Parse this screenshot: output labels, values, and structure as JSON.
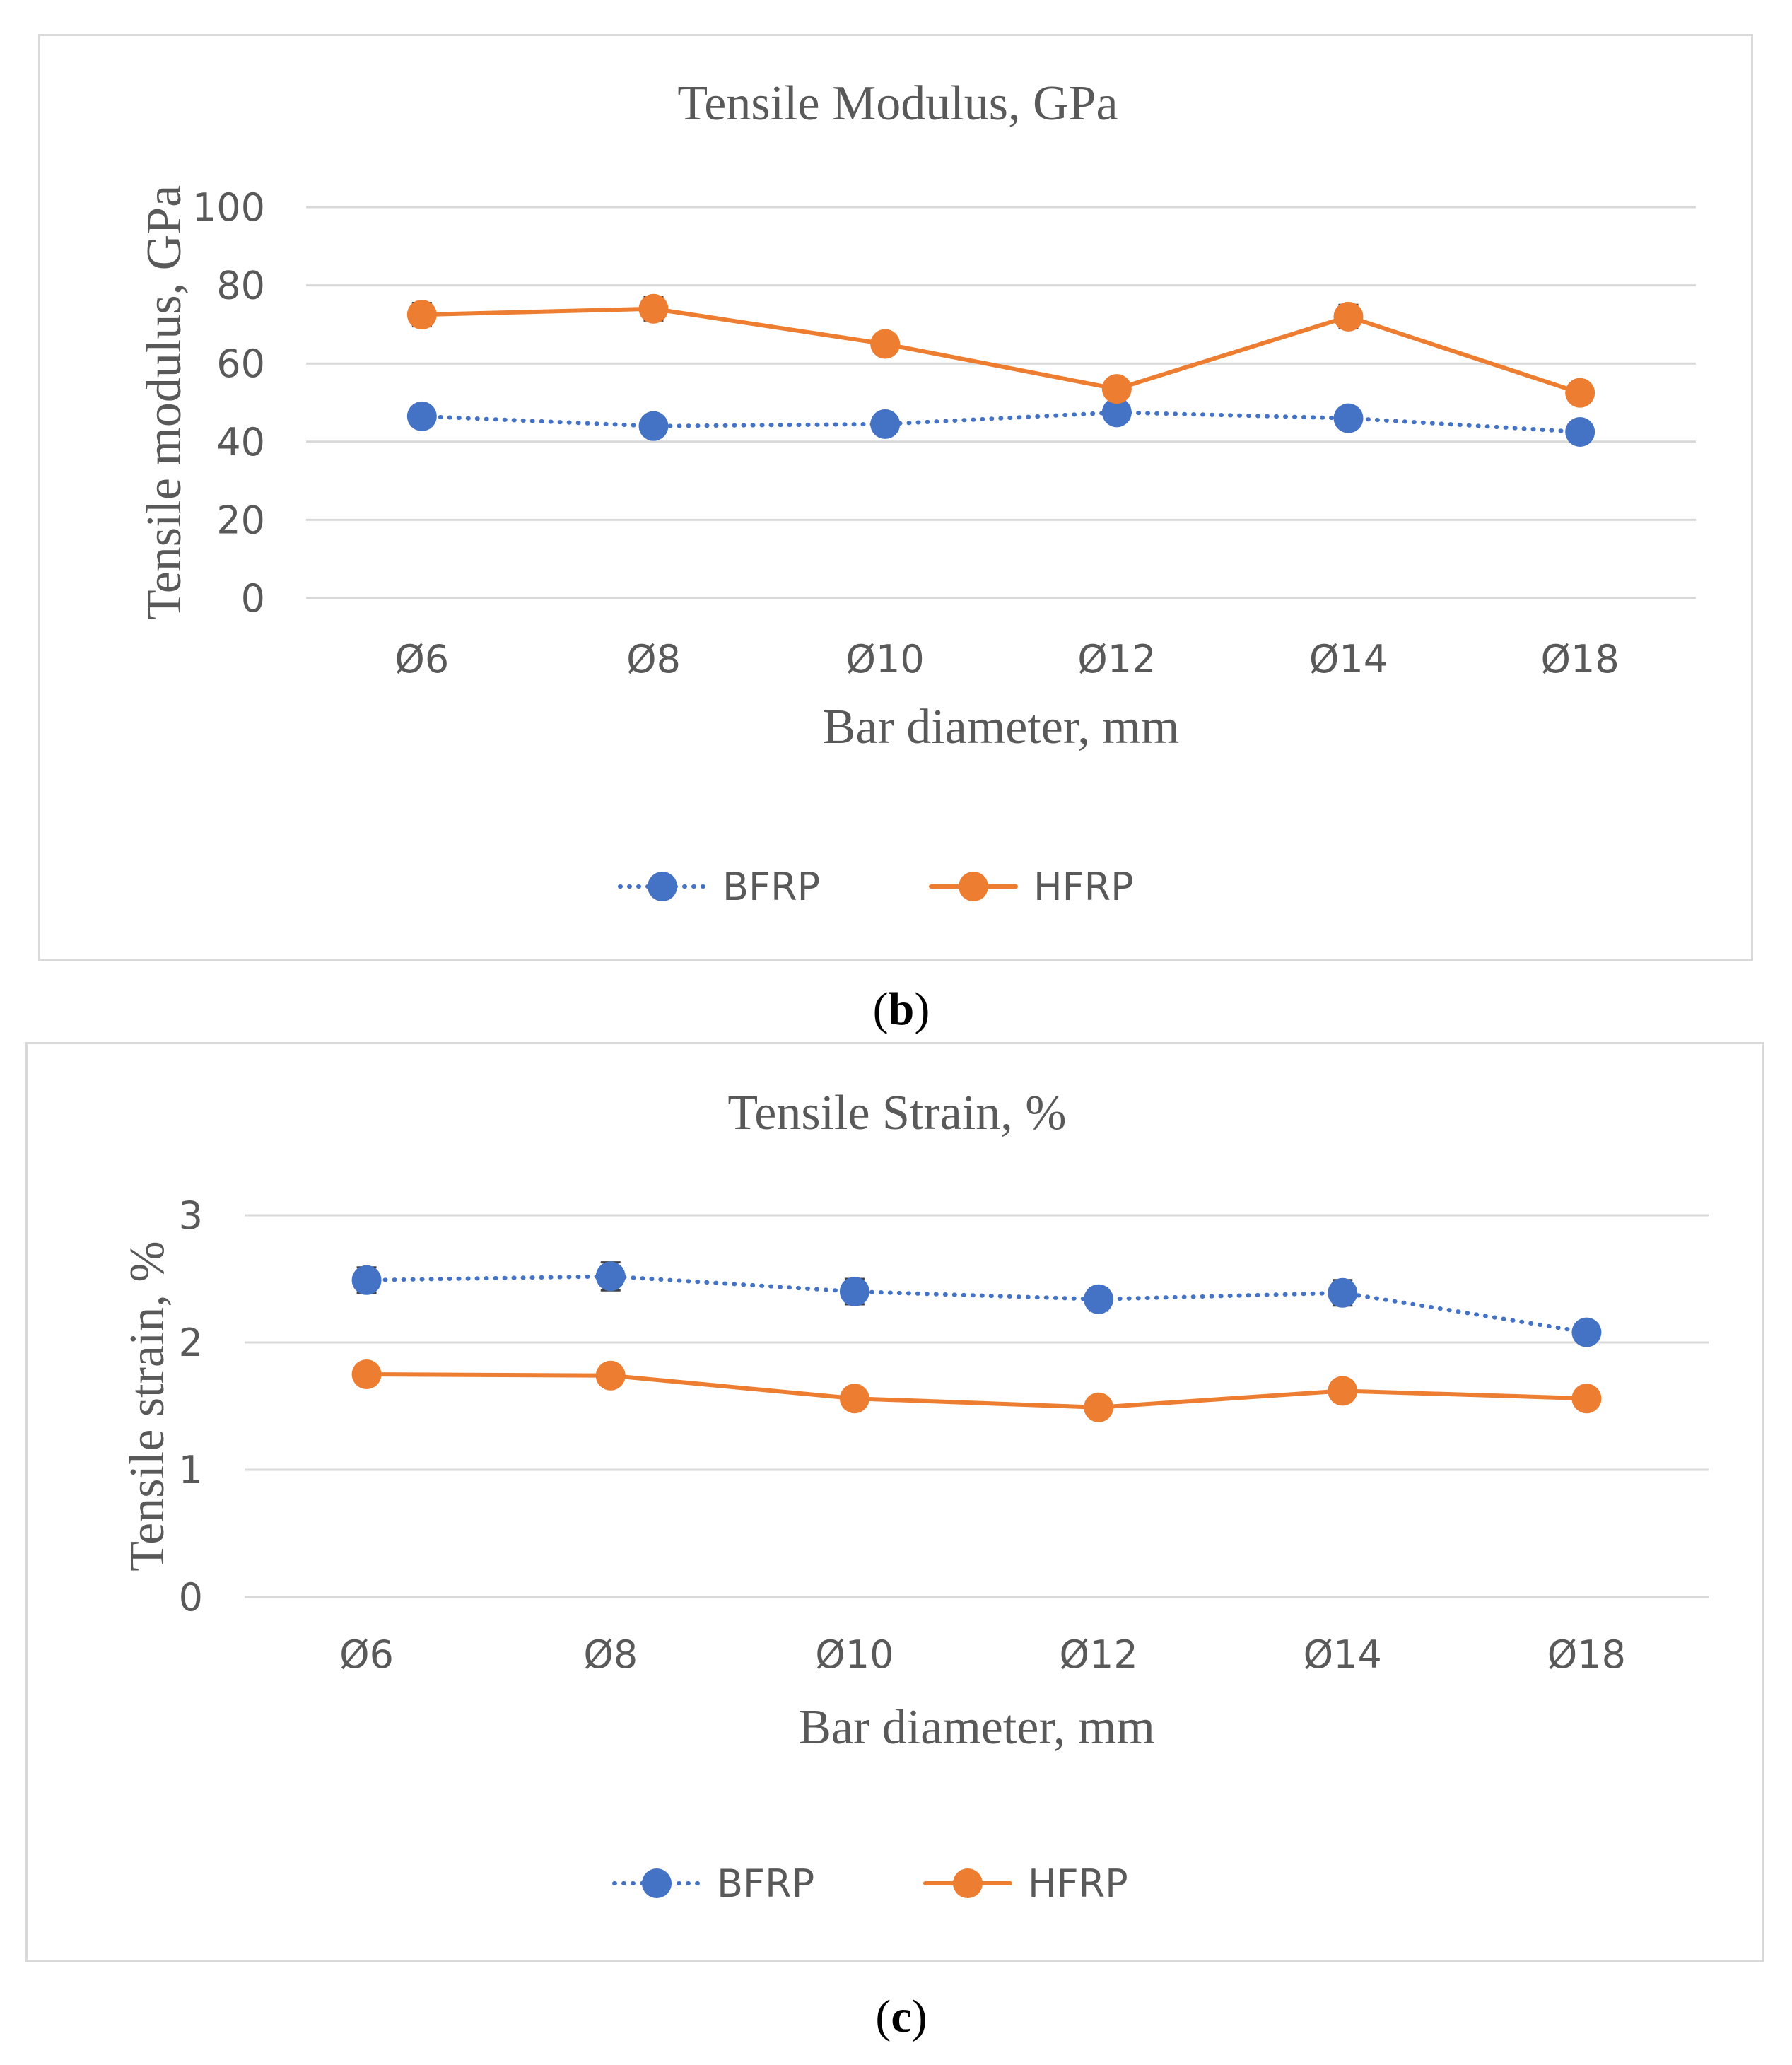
{
  "chart_data": [
    {
      "type": "line",
      "panel": "b",
      "title": "Tensile Modulus, GPa",
      "xlabel": "Bar diameter, mm",
      "ylabel": "Tensile modulus,  GPa",
      "categories": [
        "Ø6",
        "Ø8",
        "Ø10",
        "Ø12",
        "Ø14",
        "Ø18"
      ],
      "ylim": [
        0,
        100
      ],
      "yticks": [
        0,
        20,
        40,
        60,
        80,
        100
      ],
      "grid": true,
      "legend": "bottom",
      "series": [
        {
          "name": "BFRP",
          "color": "#4472c4",
          "line_style": "dotted",
          "values": [
            46.5,
            44,
            44.5,
            47.5,
            46,
            42.5
          ],
          "error": [
            1.5,
            1.5,
            1.5,
            2,
            1.5,
            1.5
          ]
        },
        {
          "name": "HFRP",
          "color": "#ed7d31",
          "line_style": "solid",
          "values": [
            72.5,
            74,
            65,
            53.5,
            72,
            52.5
          ],
          "error": [
            3,
            3,
            2.5,
            2,
            3,
            2
          ]
        }
      ]
    },
    {
      "type": "line",
      "panel": "c",
      "title": "Tensile Strain, %",
      "xlabel": "Bar diameter, mm",
      "ylabel": "Tensile strain, %",
      "categories": [
        "Ø6",
        "Ø8",
        "Ø10",
        "Ø12",
        "Ø14",
        "Ø18"
      ],
      "ylim": [
        0,
        3
      ],
      "yticks": [
        0,
        1,
        2,
        3
      ],
      "grid": true,
      "legend": "bottom",
      "series": [
        {
          "name": "BFRP",
          "color": "#4472c4",
          "line_style": "dotted",
          "values": [
            2.49,
            2.52,
            2.4,
            2.34,
            2.39,
            2.08
          ],
          "error": [
            0.1,
            0.11,
            0.1,
            0.09,
            0.1,
            0.08
          ]
        },
        {
          "name": "HFRP",
          "color": "#ed7d31",
          "line_style": "solid",
          "values": [
            1.75,
            1.74,
            1.56,
            1.49,
            1.62,
            1.56
          ],
          "error": [
            0.05,
            0.05,
            0.04,
            0.04,
            0.05,
            0.04
          ]
        }
      ]
    }
  ],
  "captions": {
    "b": "b",
    "c": "c"
  }
}
